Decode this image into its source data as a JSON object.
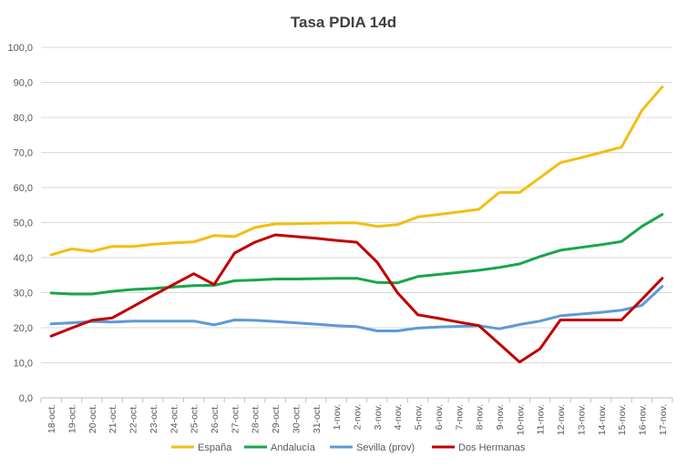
{
  "chart_data": {
    "type": "line",
    "title": "Tasa PDIA 14d",
    "xlabel": "",
    "ylabel": "",
    "ylim": [
      0,
      100
    ],
    "yticks": [
      "0,0",
      "10,0",
      "20,0",
      "30,0",
      "40,0",
      "50,0",
      "60,0",
      "70,0",
      "80,0",
      "90,0",
      "100,0"
    ],
    "grid": true,
    "legend_position": "bottom",
    "categories": [
      "18-oct.",
      "19-oct.",
      "20-oct.",
      "21-oct.",
      "22-oct.",
      "23-oct.",
      "24-oct.",
      "25-oct.",
      "26-oct.",
      "27-oct.",
      "28-oct.",
      "29-oct.",
      "30-oct.",
      "31-oct.",
      "1-nov.",
      "2-nov.",
      "3-nov.",
      "4-nov.",
      "5-nov.",
      "6-nov.",
      "7-nov.",
      "8-nov.",
      "9-nov.",
      "10-nov.",
      "11-nov.",
      "12-nov.",
      "13-nov.",
      "14-nov.",
      "15-nov.",
      "16-nov.",
      "17-nov."
    ],
    "series": [
      {
        "name": "España",
        "color": "#f2be10",
        "values": [
          40.8,
          42.5,
          41.8,
          43.2,
          43.2,
          43.8,
          44.2,
          44.5,
          46.3,
          46.0,
          48.6,
          49.6,
          49.7,
          49.8,
          49.9,
          49.9,
          48.9,
          49.4,
          51.6,
          52.3,
          53.0,
          53.8,
          58.6,
          58.6,
          62.8,
          67.1,
          68.5,
          70.0,
          71.5,
          82.0,
          88.7
        ]
      },
      {
        "name": "Andalucía",
        "color": "#18a64a",
        "values": [
          29.9,
          29.6,
          29.6,
          30.4,
          30.9,
          31.2,
          31.6,
          32.0,
          32.1,
          33.4,
          33.6,
          33.9,
          33.9,
          34.0,
          34.1,
          34.1,
          32.9,
          32.8,
          34.6,
          35.2,
          35.8,
          36.4,
          37.2,
          38.2,
          40.3,
          42.1,
          42.9,
          43.7,
          44.6,
          48.9,
          52.3
        ]
      },
      {
        "name": "Sevilla (prov)",
        "color": "#5b9bd5",
        "values": [
          21.1,
          21.4,
          21.8,
          21.6,
          21.9,
          21.9,
          21.9,
          21.9,
          20.8,
          22.2,
          22.1,
          21.8,
          21.4,
          21.0,
          20.6,
          20.3,
          19.1,
          19.1,
          19.9,
          20.2,
          20.4,
          20.6,
          19.7,
          20.9,
          21.9,
          23.4,
          23.9,
          24.4,
          25.0,
          26.4,
          31.8
        ]
      },
      {
        "name": "Dos Hermanas",
        "color": "#c00000",
        "values": [
          17.6,
          19.9,
          22.1,
          22.8,
          26.0,
          29.2,
          32.3,
          35.4,
          32.3,
          41.3,
          44.4,
          46.5,
          46.0,
          45.5,
          44.9,
          44.4,
          38.7,
          30.0,
          23.7,
          22.7,
          21.6,
          20.6,
          15.4,
          10.2,
          14.0,
          22.2,
          22.2,
          22.2,
          22.2,
          28.1,
          34.1
        ]
      }
    ]
  }
}
